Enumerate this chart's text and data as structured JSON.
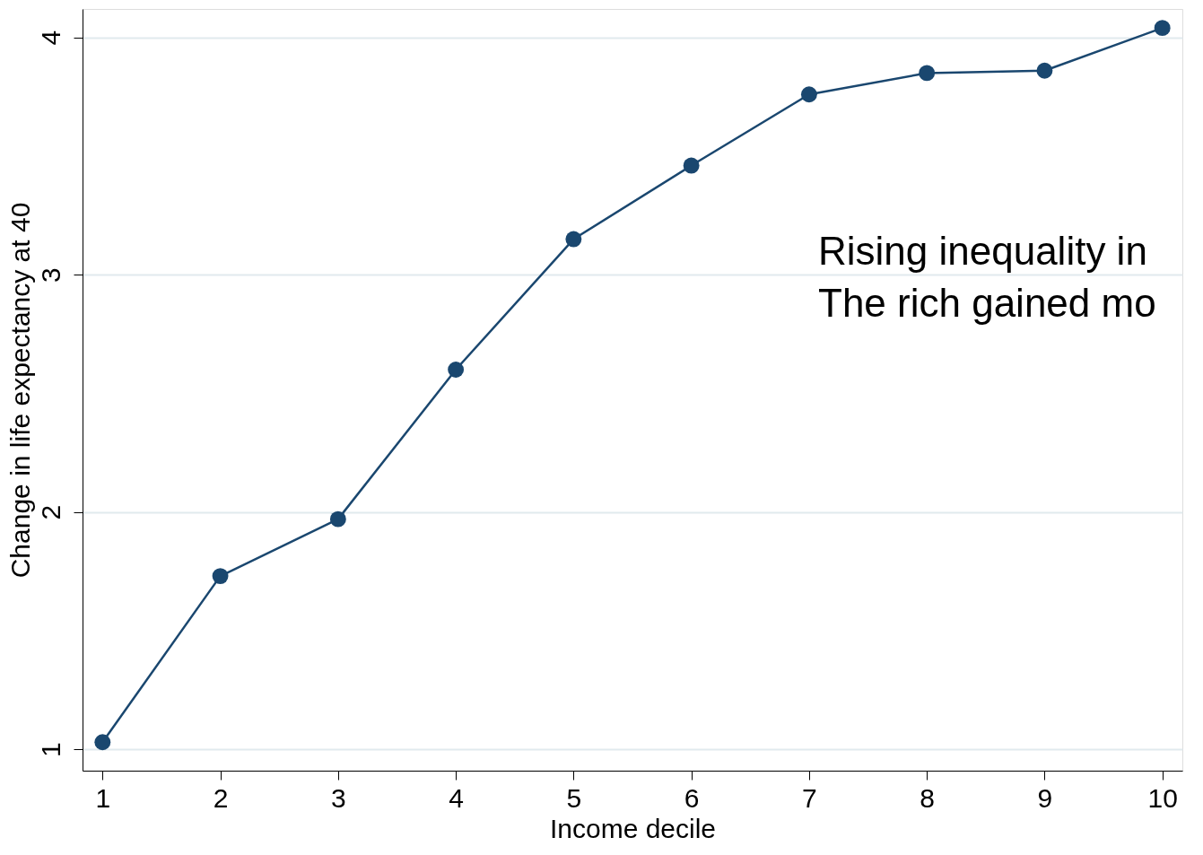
{
  "chart_data": {
    "type": "line",
    "xlabel": "Income decile",
    "ylabel": "Change in life expectancy at 40",
    "x": [
      1,
      2,
      3,
      4,
      5,
      6,
      7,
      8,
      9,
      10
    ],
    "series": [
      {
        "color": "#1a476f",
        "values": [
          1.03,
          1.73,
          1.97,
          2.6,
          3.15,
          3.46,
          3.76,
          3.85,
          3.86,
          4.04
        ]
      }
    ],
    "xlim": [
      0.83,
      10.17
    ],
    "xticks": [
      1,
      2,
      3,
      4,
      5,
      6,
      7,
      8,
      9,
      10
    ],
    "ylim": [
      0.91,
      4.12
    ],
    "yticks": [
      1,
      2,
      3,
      4
    ],
    "grid": "y",
    "marker": "circle",
    "line_style": "solid",
    "annotations": [
      "Rising inequality in",
      "The rich gained mo"
    ]
  }
}
